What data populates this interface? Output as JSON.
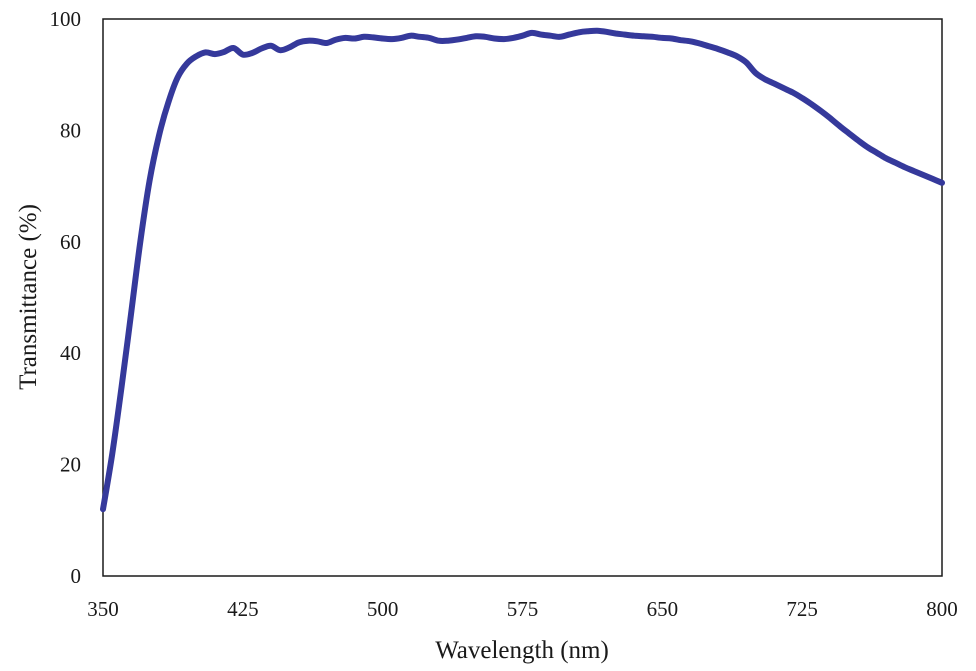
{
  "chart_data": {
    "type": "line",
    "title": "",
    "xlabel": "Wavelength (nm)",
    "ylabel": "Transmittance (%)",
    "xlim": [
      350,
      800
    ],
    "ylim": [
      0,
      100
    ],
    "x_ticks": [
      350,
      425,
      500,
      575,
      650,
      725,
      800
    ],
    "y_ticks": [
      0,
      20,
      40,
      60,
      80,
      100
    ],
    "grid": false,
    "legend": "none",
    "series": [
      {
        "color": "#35399b",
        "x": [
          350,
          355,
          360,
          365,
          370,
          375,
          380,
          385,
          390,
          395,
          400,
          405,
          410,
          415,
          420,
          425,
          430,
          435,
          440,
          445,
          450,
          455,
          460,
          465,
          470,
          475,
          480,
          485,
          490,
          495,
          500,
          505,
          510,
          515,
          520,
          525,
          530,
          535,
          540,
          545,
          550,
          555,
          560,
          565,
          570,
          575,
          580,
          585,
          590,
          595,
          600,
          605,
          610,
          615,
          620,
          625,
          630,
          635,
          640,
          645,
          650,
          655,
          660,
          665,
          670,
          675,
          680,
          685,
          690,
          695,
          700,
          705,
          710,
          715,
          720,
          725,
          730,
          735,
          740,
          745,
          750,
          755,
          760,
          765,
          770,
          775,
          780,
          785,
          790,
          795,
          800
        ],
        "y": [
          12,
          22,
          34,
          47,
          60,
          71,
          79,
          85,
          89.5,
          92,
          93.3,
          94,
          93.7,
          94.1,
          94.8,
          93.6,
          93.9,
          94.7,
          95.2,
          94.4,
          94.9,
          95.8,
          96.1,
          96.0,
          95.7,
          96.3,
          96.6,
          96.5,
          96.8,
          96.7,
          96.5,
          96.4,
          96.6,
          97.0,
          96.8,
          96.6,
          96.1,
          96.1,
          96.3,
          96.6,
          96.9,
          96.8,
          96.5,
          96.4,
          96.6,
          97.0,
          97.5,
          97.2,
          97.0,
          96.8,
          97.2,
          97.6,
          97.8,
          97.9,
          97.7,
          97.4,
          97.2,
          97.0,
          96.9,
          96.8,
          96.6,
          96.5,
          96.2,
          96.0,
          95.6,
          95.1,
          94.6,
          94.0,
          93.3,
          92.2,
          90.3,
          89.2,
          88.4,
          87.6,
          86.8,
          85.8,
          84.7,
          83.5,
          82.2,
          80.8,
          79.5,
          78.2,
          77.0,
          76.0,
          75.0,
          74.2,
          73.4,
          72.7,
          72.0,
          71.3,
          70.6
        ]
      }
    ]
  }
}
